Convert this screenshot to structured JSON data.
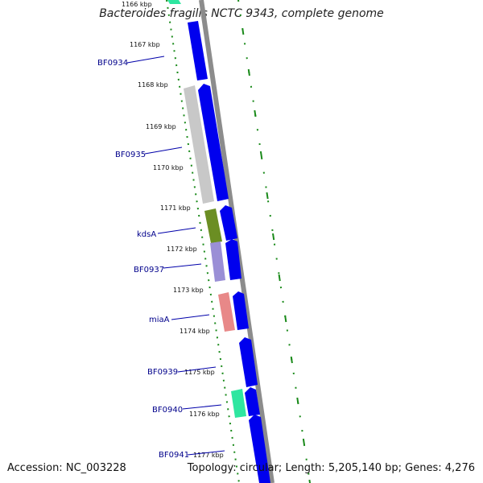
{
  "title": "Bacteroides fragilis NCTC 9343, complete genome",
  "footer": {
    "accession_label": "Accession:",
    "accession": "NC_003228",
    "topology_label": "Topology:",
    "topology": "circular",
    "length_label": "Length:",
    "length": "5,205,140 bp",
    "genes_label": "Genes:",
    "genes": "4,276"
  },
  "colors": {
    "backbone": "#8c8c8c",
    "gene_forward": "#0000ee",
    "tick": "#1a8a1a",
    "label": "#00008b",
    "cog_light_gray": "#c8c8c8",
    "cog_olive": "#6b8e23",
    "cog_lavender": "#9a8fd6",
    "cog_salmon": "#e88888",
    "cog_aqua": "#2ee6a0"
  },
  "scale_ticks": [
    "1166 kbp",
    "1167 kbp",
    "1168 kbp",
    "1169 kbp",
    "1170 kbp",
    "1171 kbp",
    "1172 kbp",
    "1173 kbp",
    "1174 kbp",
    "1175 kbp",
    "1176 kbp",
    "1177 kbp"
  ],
  "gene_labels": [
    "BF0934",
    "BF0935",
    "kdsA",
    "BF0937",
    "miaA",
    "BF0939",
    "BF0940",
    "BF0941"
  ]
}
